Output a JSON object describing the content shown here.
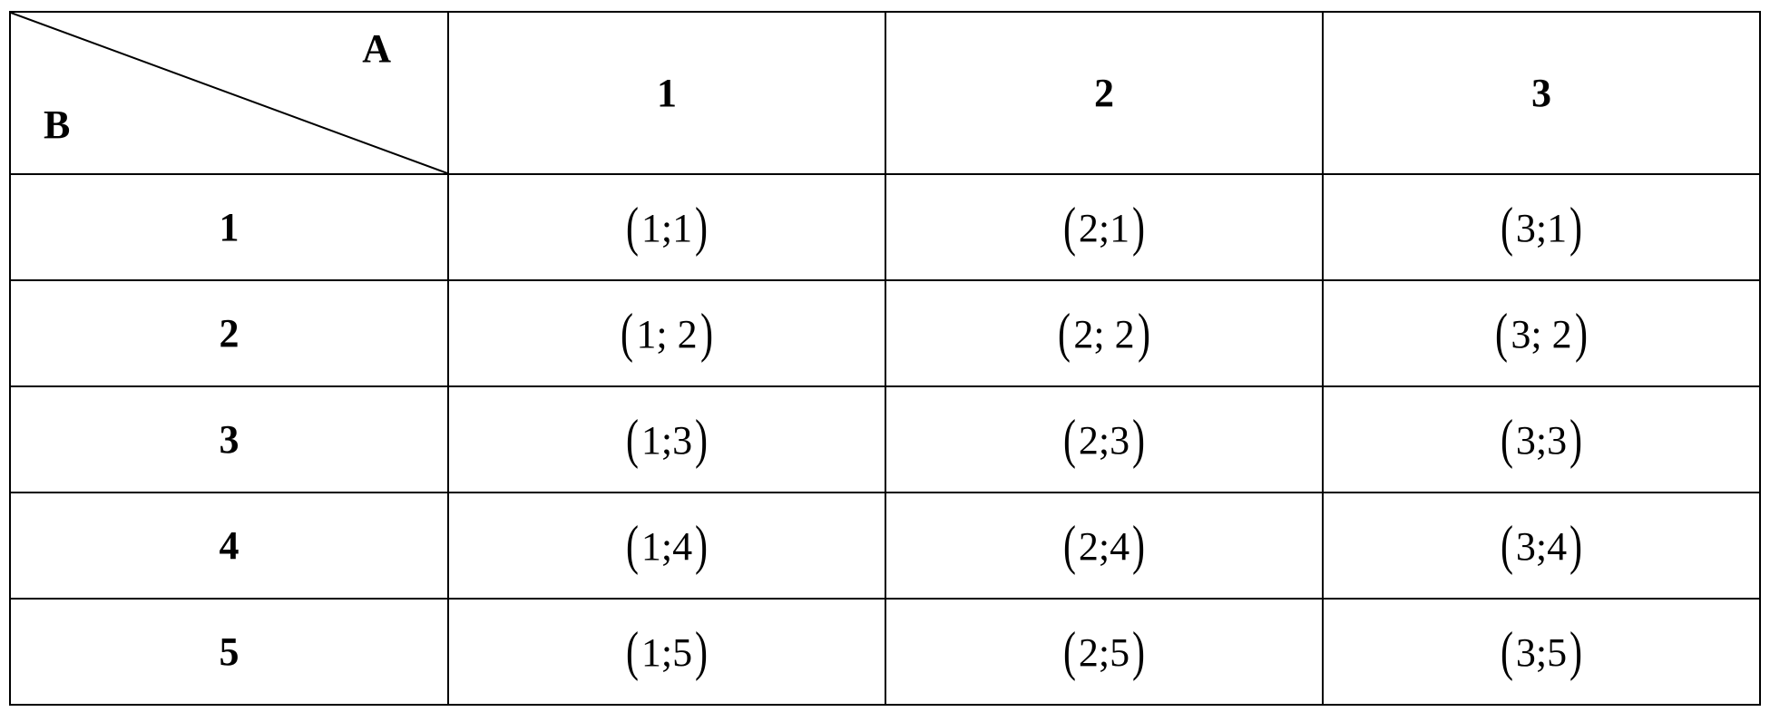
{
  "table": {
    "corner": {
      "col_label": "A",
      "row_label": "B"
    },
    "column_headers": [
      "1",
      "2",
      "3"
    ],
    "rows": [
      {
        "header": "1",
        "cells": [
          "1;1",
          "2;1",
          "3;1"
        ]
      },
      {
        "header": "2",
        "cells": [
          "1; 2",
          "2; 2",
          "3; 2"
        ]
      },
      {
        "header": "3",
        "cells": [
          "1;3",
          "2;3",
          "3;3"
        ]
      },
      {
        "header": "4",
        "cells": [
          "1;4",
          "2;4",
          "3;4"
        ]
      },
      {
        "header": "5",
        "cells": [
          "1;5",
          "2;5",
          "3;5"
        ]
      }
    ]
  }
}
